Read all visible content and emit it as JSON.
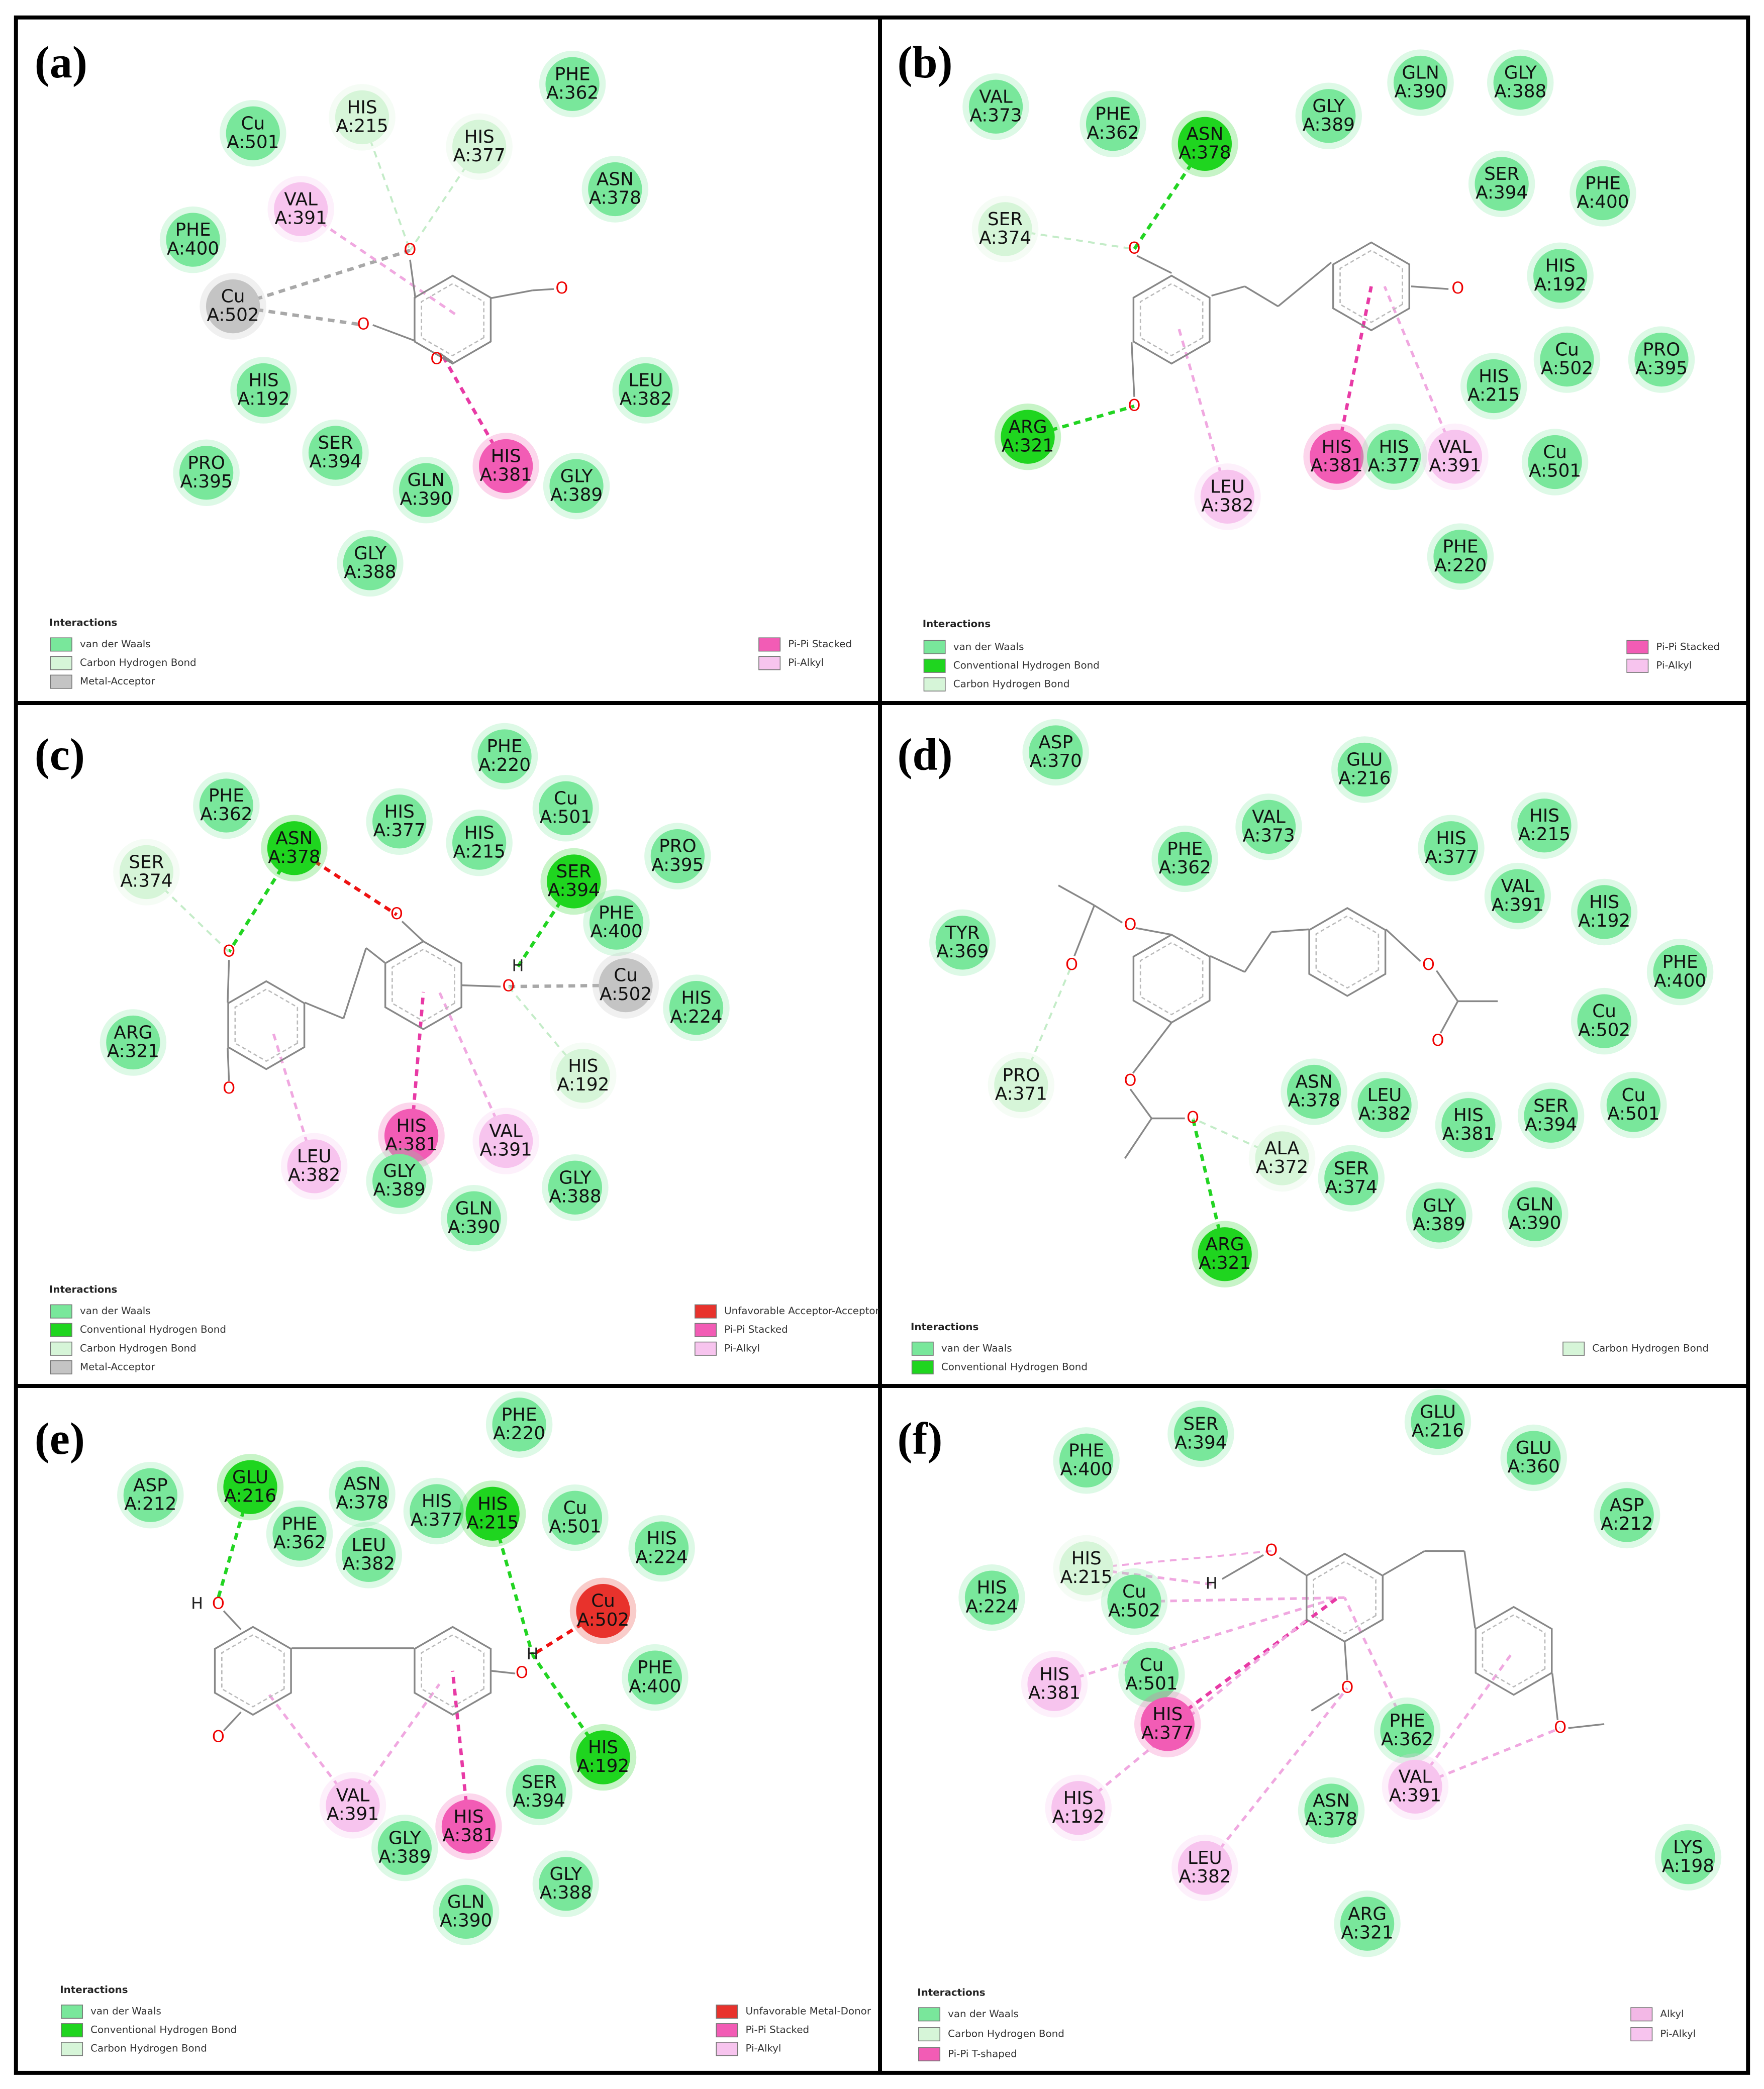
{
  "panels": [
    {
      "label": "(a)",
      "residues": [
        {
          "name": "PHE",
          "id": "A:362",
          "color": "#79e79b"
        },
        {
          "name": "HIS",
          "id": "A:215",
          "color": "#d6f5d8"
        },
        {
          "name": "HIS",
          "id": "A:377",
          "color": "#d6f5d8"
        },
        {
          "name": "Cu",
          "id": "A:501",
          "color": "#79e79b"
        },
        {
          "name": "ASN",
          "id": "A:378",
          "color": "#79e79b"
        },
        {
          "name": "VAL",
          "id": "A:391",
          "color": "#f7c4ee"
        },
        {
          "name": "PHE",
          "id": "A:400",
          "color": "#79e79b"
        },
        {
          "name": "Cu",
          "id": "A:502",
          "color": "#c4c4c4"
        },
        {
          "name": "HIS",
          "id": "A:192",
          "color": "#79e79b"
        },
        {
          "name": "LEU",
          "id": "A:382",
          "color": "#79e79b"
        },
        {
          "name": "PRO",
          "id": "A:395",
          "color": "#79e79b"
        },
        {
          "name": "SER",
          "id": "A:394",
          "color": "#79e79b"
        },
        {
          "name": "GLN",
          "id": "A:390",
          "color": "#79e79b"
        },
        {
          "name": "HIS",
          "id": "A:381",
          "color": "#f25cb5"
        },
        {
          "name": "GLY",
          "id": "A:389",
          "color": "#79e79b"
        },
        {
          "name": "GLY",
          "id": "A:388",
          "color": "#79e79b"
        }
      ],
      "atoms": [
        "O",
        "O",
        "O",
        "O"
      ],
      "legend": {
        "title": "Interactions",
        "items": [
          {
            "text": "van der Waals",
            "color": "#79e79b"
          },
          {
            "text": "Carbon Hydrogen Bond",
            "color": "#d6f5d8"
          },
          {
            "text": "Metal-Acceptor",
            "color": "#c4c4c4"
          },
          {
            "text": "Pi-Pi Stacked",
            "color": "#f25cb5"
          },
          {
            "text": "Pi-Alkyl",
            "color": "#f7c4ee"
          }
        ]
      }
    },
    {
      "label": "(b)",
      "residues": [
        {
          "name": "VAL",
          "id": "A:373",
          "color": "#79e79b"
        },
        {
          "name": "PHE",
          "id": "A:362",
          "color": "#79e79b"
        },
        {
          "name": "ASN",
          "id": "A:378",
          "color": "#1fd51f"
        },
        {
          "name": "GLY",
          "id": "A:389",
          "color": "#79e79b"
        },
        {
          "name": "GLN",
          "id": "A:390",
          "color": "#79e79b"
        },
        {
          "name": "GLY",
          "id": "A:388",
          "color": "#79e79b"
        },
        {
          "name": "SER",
          "id": "A:394",
          "color": "#79e79b"
        },
        {
          "name": "PHE",
          "id": "A:400",
          "color": "#79e79b"
        },
        {
          "name": "SER",
          "id": "A:374",
          "color": "#d6f5d8"
        },
        {
          "name": "HIS",
          "id": "A:192",
          "color": "#79e79b"
        },
        {
          "name": "Cu",
          "id": "A:502",
          "color": "#79e79b"
        },
        {
          "name": "PRO",
          "id": "A:395",
          "color": "#79e79b"
        },
        {
          "name": "HIS",
          "id": "A:215",
          "color": "#79e79b"
        },
        {
          "name": "ARG",
          "id": "A:321",
          "color": "#1fd51f"
        },
        {
          "name": "HIS",
          "id": "A:381",
          "color": "#f25cb5"
        },
        {
          "name": "HIS",
          "id": "A:377",
          "color": "#79e79b"
        },
        {
          "name": "VAL",
          "id": "A:391",
          "color": "#f7c4ee"
        },
        {
          "name": "Cu",
          "id": "A:501",
          "color": "#79e79b"
        },
        {
          "name": "LEU",
          "id": "A:382",
          "color": "#f7c4ee"
        },
        {
          "name": "PHE",
          "id": "A:220",
          "color": "#79e79b"
        }
      ],
      "atoms": [
        "O",
        "O",
        "O"
      ],
      "legend": {
        "title": "Interactions",
        "items": [
          {
            "text": "van der Waals",
            "color": "#79e79b"
          },
          {
            "text": "Conventional Hydrogen Bond",
            "color": "#1fd51f"
          },
          {
            "text": "Carbon Hydrogen Bond",
            "color": "#d6f5d8"
          },
          {
            "text": "Pi-Pi Stacked",
            "color": "#f25cb5"
          },
          {
            "text": "Pi-Alkyl",
            "color": "#f7c4ee"
          }
        ]
      }
    },
    {
      "label": "(c)",
      "residues": [
        {
          "name": "PHE",
          "id": "A:220",
          "color": "#79e79b"
        },
        {
          "name": "PHE",
          "id": "A:362",
          "color": "#79e79b"
        },
        {
          "name": "ASN",
          "id": "A:378",
          "color": "#1fd51f"
        },
        {
          "name": "SER",
          "id": "A:374",
          "color": "#d6f5d8"
        },
        {
          "name": "HIS",
          "id": "A:377",
          "color": "#79e79b"
        },
        {
          "name": "HIS",
          "id": "A:215",
          "color": "#79e79b"
        },
        {
          "name": "Cu",
          "id": "A:501",
          "color": "#79e79b"
        },
        {
          "name": "SER",
          "id": "A:394",
          "color": "#1fd51f"
        },
        {
          "name": "PRO",
          "id": "A:395",
          "color": "#79e79b"
        },
        {
          "name": "PHE",
          "id": "A:400",
          "color": "#79e79b"
        },
        {
          "name": "Cu",
          "id": "A:502",
          "color": "#c4c4c4"
        },
        {
          "name": "HIS",
          "id": "A:224",
          "color": "#79e79b"
        },
        {
          "name": "ARG",
          "id": "A:321",
          "color": "#79e79b"
        },
        {
          "name": "HIS",
          "id": "A:192",
          "color": "#d6f5d8"
        },
        {
          "name": "HIS",
          "id": "A:381",
          "color": "#f25cb5"
        },
        {
          "name": "VAL",
          "id": "A:391",
          "color": "#f7c4ee"
        },
        {
          "name": "LEU",
          "id": "A:382",
          "color": "#f7c4ee"
        },
        {
          "name": "GLY",
          "id": "A:389",
          "color": "#79e79b"
        },
        {
          "name": "GLY",
          "id": "A:388",
          "color": "#79e79b"
        },
        {
          "name": "GLN",
          "id": "A:390",
          "color": "#79e79b"
        }
      ],
      "atoms": [
        "O",
        "O",
        "O",
        "H",
        "O"
      ],
      "legend": {
        "title": "Interactions",
        "items": [
          {
            "text": "van der Waals",
            "color": "#79e79b"
          },
          {
            "text": "Conventional Hydrogen Bond",
            "color": "#1fd51f"
          },
          {
            "text": "Carbon Hydrogen Bond",
            "color": "#d6f5d8"
          },
          {
            "text": "Metal-Acceptor",
            "color": "#c4c4c4"
          },
          {
            "text": "Unfavorable Acceptor-Acceptor",
            "color": "#e8322c"
          },
          {
            "text": "Pi-Pi Stacked",
            "color": "#f25cb5"
          },
          {
            "text": "Pi-Alkyl",
            "color": "#f7c4ee"
          }
        ]
      }
    },
    {
      "label": "(d)",
      "residues": [
        {
          "name": "ASP",
          "id": "A:370",
          "color": "#79e79b"
        },
        {
          "name": "GLU",
          "id": "A:216",
          "color": "#79e79b"
        },
        {
          "name": "VAL",
          "id": "A:373",
          "color": "#79e79b"
        },
        {
          "name": "PHE",
          "id": "A:362",
          "color": "#79e79b"
        },
        {
          "name": "HIS",
          "id": "A:215",
          "color": "#79e79b"
        },
        {
          "name": "HIS",
          "id": "A:377",
          "color": "#79e79b"
        },
        {
          "name": "VAL",
          "id": "A:391",
          "color": "#79e79b"
        },
        {
          "name": "HIS",
          "id": "A:192",
          "color": "#79e79b"
        },
        {
          "name": "TYR",
          "id": "A:369",
          "color": "#79e79b"
        },
        {
          "name": "PHE",
          "id": "A:400",
          "color": "#79e79b"
        },
        {
          "name": "Cu",
          "id": "A:502",
          "color": "#79e79b"
        },
        {
          "name": "PRO",
          "id": "A:371",
          "color": "#d6f5d8"
        },
        {
          "name": "ASN",
          "id": "A:378",
          "color": "#79e79b"
        },
        {
          "name": "LEU",
          "id": "A:382",
          "color": "#79e79b"
        },
        {
          "name": "HIS",
          "id": "A:381",
          "color": "#79e79b"
        },
        {
          "name": "SER",
          "id": "A:394",
          "color": "#79e79b"
        },
        {
          "name": "Cu",
          "id": "A:501",
          "color": "#79e79b"
        },
        {
          "name": "ALA",
          "id": "A:372",
          "color": "#d6f5d8"
        },
        {
          "name": "SER",
          "id": "A:374",
          "color": "#79e79b"
        },
        {
          "name": "GLY",
          "id": "A:389",
          "color": "#79e79b"
        },
        {
          "name": "GLN",
          "id": "A:390",
          "color": "#79e79b"
        },
        {
          "name": "ARG",
          "id": "A:321",
          "color": "#1fd51f"
        }
      ],
      "atoms": [
        "O",
        "O",
        "O",
        "O",
        "O",
        "O"
      ],
      "legend": {
        "title": "Interactions",
        "items": [
          {
            "text": "van der Waals",
            "color": "#79e79b"
          },
          {
            "text": "Conventional Hydrogen Bond",
            "color": "#1fd51f"
          },
          {
            "text": "Carbon Hydrogen Bond",
            "color": "#d6f5d8"
          }
        ]
      }
    },
    {
      "label": "(e)",
      "residues": [
        {
          "name": "PHE",
          "id": "A:220",
          "color": "#79e79b"
        },
        {
          "name": "ASP",
          "id": "A:212",
          "color": "#79e79b"
        },
        {
          "name": "GLU",
          "id": "A:216",
          "color": "#1fd51f"
        },
        {
          "name": "ASN",
          "id": "A:378",
          "color": "#79e79b"
        },
        {
          "name": "PHE",
          "id": "A:362",
          "color": "#79e79b"
        },
        {
          "name": "HIS",
          "id": "A:377",
          "color": "#79e79b"
        },
        {
          "name": "HIS",
          "id": "A:215",
          "color": "#1fd51f"
        },
        {
          "name": "Cu",
          "id": "A:501",
          "color": "#79e79b"
        },
        {
          "name": "HIS",
          "id": "A:224",
          "color": "#79e79b"
        },
        {
          "name": "LEU",
          "id": "A:382",
          "color": "#79e79b"
        },
        {
          "name": "Cu",
          "id": "A:502",
          "color": "#e8322c"
        },
        {
          "name": "PHE",
          "id": "A:400",
          "color": "#79e79b"
        },
        {
          "name": "HIS",
          "id": "A:192",
          "color": "#1fd51f"
        },
        {
          "name": "VAL",
          "id": "A:391",
          "color": "#f7c4ee"
        },
        {
          "name": "SER",
          "id": "A:394",
          "color": "#79e79b"
        },
        {
          "name": "HIS",
          "id": "A:381",
          "color": "#f25cb5"
        },
        {
          "name": "GLY",
          "id": "A:389",
          "color": "#79e79b"
        },
        {
          "name": "GLY",
          "id": "A:388",
          "color": "#79e79b"
        },
        {
          "name": "GLN",
          "id": "A:390",
          "color": "#79e79b"
        }
      ],
      "atoms": [
        "H",
        "O",
        "O",
        "O",
        "H"
      ],
      "legend": {
        "title": "Interactions",
        "items": [
          {
            "text": "van der Waals",
            "color": "#79e79b"
          },
          {
            "text": "Conventional Hydrogen Bond",
            "color": "#1fd51f"
          },
          {
            "text": "Carbon Hydrogen Bond",
            "color": "#d6f5d8"
          },
          {
            "text": "Unfavorable Metal-Donor",
            "color": "#e8322c"
          },
          {
            "text": "Pi-Pi Stacked",
            "color": "#f25cb5"
          },
          {
            "text": "Pi-Alkyl",
            "color": "#f7c4ee"
          }
        ]
      }
    },
    {
      "label": "(f)",
      "residues": [
        {
          "name": "SER",
          "id": "A:394",
          "color": "#79e79b"
        },
        {
          "name": "GLU",
          "id": "A:216",
          "color": "#79e79b"
        },
        {
          "name": "PHE",
          "id": "A:400",
          "color": "#79e79b"
        },
        {
          "name": "GLU",
          "id": "A:360",
          "color": "#79e79b"
        },
        {
          "name": "ASP",
          "id": "A:212",
          "color": "#79e79b"
        },
        {
          "name": "HIS",
          "id": "A:215",
          "color": "#d6f5d8"
        },
        {
          "name": "HIS",
          "id": "A:224",
          "color": "#79e79b"
        },
        {
          "name": "Cu",
          "id": "A:502",
          "color": "#79e79b"
        },
        {
          "name": "Cu",
          "id": "A:501",
          "color": "#79e79b"
        },
        {
          "name": "HIS",
          "id": "A:381",
          "color": "#f7c4ee"
        },
        {
          "name": "HIS",
          "id": "A:377",
          "color": "#f25cb5"
        },
        {
          "name": "PHE",
          "id": "A:362",
          "color": "#79e79b"
        },
        {
          "name": "VAL",
          "id": "A:391",
          "color": "#f7c4ee"
        },
        {
          "name": "HIS",
          "id": "A:192",
          "color": "#f7c4ee"
        },
        {
          "name": "ASN",
          "id": "A:378",
          "color": "#79e79b"
        },
        {
          "name": "LEU",
          "id": "A:382",
          "color": "#f7c4ee"
        },
        {
          "name": "LYS",
          "id": "A:198",
          "color": "#79e79b"
        },
        {
          "name": "ARG",
          "id": "A:321",
          "color": "#79e79b"
        }
      ],
      "atoms": [
        "O",
        "H",
        "O",
        "O"
      ],
      "legend": {
        "title": "Interactions",
        "items": [
          {
            "text": "van der Waals",
            "color": "#79e79b"
          },
          {
            "text": "Carbon Hydrogen Bond",
            "color": "#d6f5d8"
          },
          {
            "text": "Pi-Pi T-shaped",
            "color": "#f25cb5"
          },
          {
            "text": "Alkyl",
            "color": "#f3b8e6"
          },
          {
            "text": "Pi-Alkyl",
            "color": "#f7c4ee"
          }
        ]
      }
    }
  ]
}
